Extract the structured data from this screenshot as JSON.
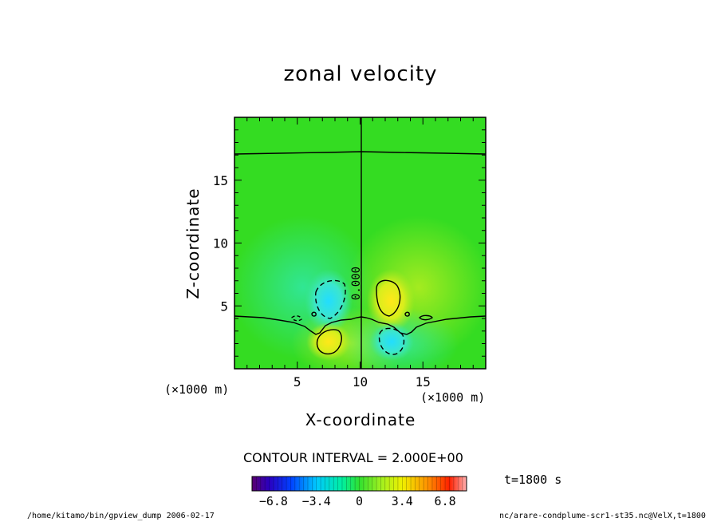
{
  "chart_data": {
    "type": "heatmap",
    "title": "zonal velocity",
    "xlabel": "X-coordinate",
    "ylabel": "Z-coordinate",
    "x_unit": "(×1000 m)",
    "y_unit": "(×1000 m)",
    "xlim": [
      0,
      20
    ],
    "ylim": [
      0,
      20
    ],
    "x_ticks": [
      5,
      10,
      15
    ],
    "y_ticks": [
      5,
      10,
      15
    ],
    "contour_interval_text": "CONTOUR INTERVAL = 2.000E+00",
    "contour_label": "0.000",
    "time_text": "t=1800 s",
    "colorbar": {
      "min": -8.5,
      "max": 8.5,
      "tick_values": [
        -6.8,
        -3.4,
        0,
        3.4,
        6.8
      ],
      "tick_labels": [
        "−6.8",
        "−3.4",
        "0",
        "3.4",
        "6.8"
      ]
    },
    "features": [
      {
        "name": "positive-lower-left",
        "x": 7.4,
        "z": 2.2,
        "value": 2.0
      },
      {
        "name": "negative-upper-left",
        "x": 7.8,
        "z": 5.8,
        "value": -2.5
      },
      {
        "name": "positive-upper-right",
        "x": 12.2,
        "z": 5.8,
        "value": 2.5
      },
      {
        "name": "negative-lower-right",
        "x": 12.6,
        "z": 2.2,
        "value": -2.0
      }
    ],
    "colors": {
      "background_field": "#33dd22",
      "positive": "#ffe81a",
      "negative": "#22ddff"
    }
  },
  "footer": {
    "left": "/home/kitamo/bin/gpview_dump  2006-02-17",
    "right": "nc/arare-condplume-scr1-st35.nc@VelX,t=1800"
  }
}
